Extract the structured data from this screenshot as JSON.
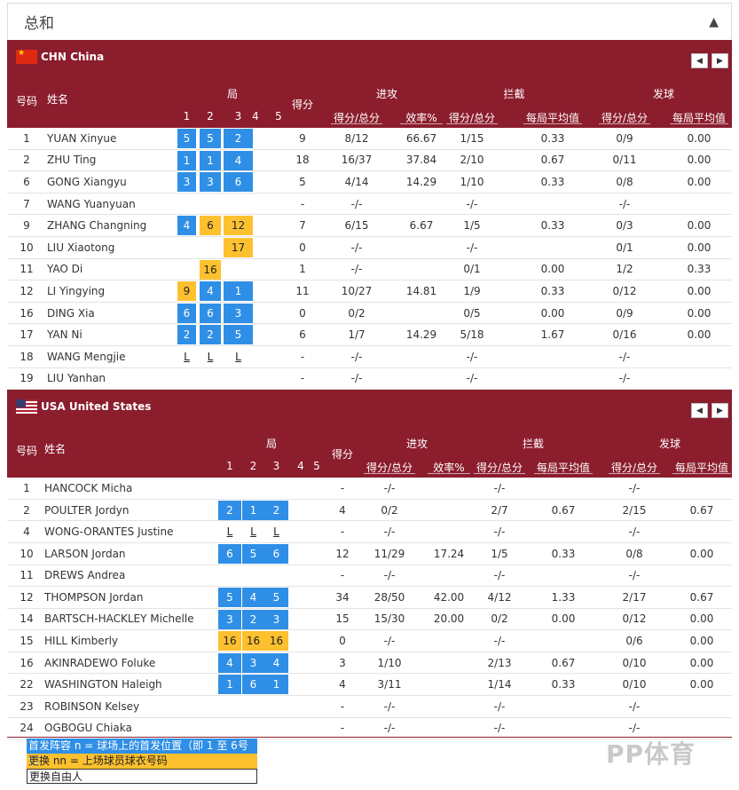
{
  "title": "总和",
  "header_labels": {
    "num": "号码",
    "name": "姓名",
    "sets": "局",
    "set_numbers": [
      "1",
      "2",
      "3",
      "4",
      "5"
    ],
    "points": "得分",
    "attack": "进攻",
    "block": "拦截",
    "serve": "发球",
    "att_sub1": "得分/总分",
    "att_sub2": "效率%",
    "blk_sub1": "得分/总分",
    "blk_sub2": "每局平均值",
    "srv_sub1": "得分/总分",
    "srv_sub2": "每局平均值"
  },
  "teams": [
    {
      "name": "CHN China",
      "players": [
        {
          "no": "1",
          "name": "YUAN Xinyue",
          "sets": [
            [
              "5",
              "blue"
            ],
            [
              "5",
              "blue"
            ],
            [
              "2",
              "blue"
            ],
            [
              "",
              ""
            ],
            [
              "",
              ""
            ]
          ],
          "pts": "9",
          "att": "8/12",
          "eff": "66.67",
          "blk": "1/15",
          "blkavg": "0.33",
          "srv": "0/9",
          "srvavg": "0.00"
        },
        {
          "no": "2",
          "name": "ZHU Ting",
          "sets": [
            [
              "1",
              "blue"
            ],
            [
              "1",
              "blue"
            ],
            [
              "4",
              "blue"
            ],
            [
              "",
              ""
            ],
            [
              "",
              ""
            ]
          ],
          "pts": "18",
          "att": "16/37",
          "eff": "37.84",
          "blk": "2/10",
          "blkavg": "0.67",
          "srv": "0/11",
          "srvavg": "0.00"
        },
        {
          "no": "6",
          "name": "GONG Xiangyu",
          "sets": [
            [
              "3",
              "blue"
            ],
            [
              "3",
              "blue"
            ],
            [
              "6",
              "blue"
            ],
            [
              "",
              ""
            ],
            [
              "",
              ""
            ]
          ],
          "pts": "5",
          "att": "4/14",
          "eff": "14.29",
          "blk": "1/10",
          "blkavg": "0.33",
          "srv": "0/8",
          "srvavg": "0.00"
        },
        {
          "no": "7",
          "name": "WANG Yuanyuan",
          "sets": [
            [
              "",
              ""
            ],
            [
              "",
              ""
            ],
            [
              "",
              ""
            ],
            [
              "",
              ""
            ],
            [
              "",
              ""
            ]
          ],
          "pts": "-",
          "att": "-/-",
          "eff": "",
          "blk": "-/-",
          "blkavg": "",
          "srv": "-/-",
          "srvavg": ""
        },
        {
          "no": "9",
          "name": "ZHANG Changning",
          "sets": [
            [
              "4",
              "blue"
            ],
            [
              "6",
              "gold"
            ],
            [
              "12",
              "gold"
            ],
            [
              "",
              ""
            ],
            [
              "",
              ""
            ]
          ],
          "pts": "7",
          "att": "6/15",
          "eff": "6.67",
          "blk": "1/5",
          "blkavg": "0.33",
          "srv": "0/3",
          "srvavg": "0.00"
        },
        {
          "no": "10",
          "name": "LIU Xiaotong",
          "sets": [
            [
              "",
              ""
            ],
            [
              "",
              ""
            ],
            [
              "17",
              "gold"
            ],
            [
              "",
              ""
            ],
            [
              "",
              ""
            ]
          ],
          "pts": "0",
          "att": "-/-",
          "eff": "",
          "blk": "-/-",
          "blkavg": "",
          "srv": "0/1",
          "srvavg": "0.00"
        },
        {
          "no": "11",
          "name": "YAO Di",
          "sets": [
            [
              "",
              ""
            ],
            [
              "16",
              "gold"
            ],
            [
              "",
              ""
            ],
            [
              "",
              ""
            ],
            [
              "",
              ""
            ]
          ],
          "pts": "1",
          "att": "-/-",
          "eff": "",
          "blk": "0/1",
          "blkavg": "0.00",
          "srv": "1/2",
          "srvavg": "0.33"
        },
        {
          "no": "12",
          "name": "LI Yingying",
          "sets": [
            [
              "9",
              "gold"
            ],
            [
              "4",
              "blue"
            ],
            [
              "1",
              "blue"
            ],
            [
              "",
              ""
            ],
            [
              "",
              ""
            ]
          ],
          "pts": "11",
          "att": "10/27",
          "eff": "14.81",
          "blk": "1/9",
          "blkavg": "0.33",
          "srv": "0/12",
          "srvavg": "0.00"
        },
        {
          "no": "16",
          "name": "DING Xia",
          "sets": [
            [
              "6",
              "blue"
            ],
            [
              "6",
              "blue"
            ],
            [
              "3",
              "blue"
            ],
            [
              "",
              ""
            ],
            [
              "",
              ""
            ]
          ],
          "pts": "0",
          "att": "0/2",
          "eff": "",
          "blk": "0/5",
          "blkavg": "0.00",
          "srv": "0/9",
          "srvavg": "0.00"
        },
        {
          "no": "17",
          "name": "YAN Ni",
          "sets": [
            [
              "2",
              "blue"
            ],
            [
              "2",
              "blue"
            ],
            [
              "5",
              "blue"
            ],
            [
              "",
              ""
            ],
            [
              "",
              ""
            ]
          ],
          "pts": "6",
          "att": "1/7",
          "eff": "14.29",
          "blk": "5/18",
          "blkavg": "1.67",
          "srv": "0/16",
          "srvavg": "0.00"
        },
        {
          "no": "18",
          "name": "WANG Mengjie",
          "sets": [
            [
              "L",
              "lib"
            ],
            [
              "L",
              "lib"
            ],
            [
              "L",
              "lib"
            ],
            [
              "",
              ""
            ],
            [
              "",
              ""
            ]
          ],
          "pts": "-",
          "att": "-/-",
          "eff": "",
          "blk": "-/-",
          "blkavg": "",
          "srv": "-/-",
          "srvavg": ""
        },
        {
          "no": "19",
          "name": "LIU Yanhan",
          "sets": [
            [
              "",
              ""
            ],
            [
              "",
              ""
            ],
            [
              "",
              ""
            ],
            [
              "",
              ""
            ],
            [
              "",
              ""
            ]
          ],
          "pts": "-",
          "att": "-/-",
          "eff": "",
          "blk": "-/-",
          "blkavg": "",
          "srv": "-/-",
          "srvavg": ""
        }
      ]
    },
    {
      "name": "USA United States",
      "players": [
        {
          "no": "1",
          "name": "HANCOCK Micha",
          "sets": [
            [
              "",
              ""
            ],
            [
              "",
              ""
            ],
            [
              "",
              ""
            ],
            [
              "",
              ""
            ],
            [
              "",
              ""
            ]
          ],
          "pts": "-",
          "att": "-/-",
          "eff": "",
          "blk": "-/-",
          "blkavg": "",
          "srv": "-/-",
          "srvavg": ""
        },
        {
          "no": "2",
          "name": "POULTER Jordyn",
          "sets": [
            [
              "2",
              "blue"
            ],
            [
              "1",
              "blue"
            ],
            [
              "2",
              "blue"
            ],
            [
              "",
              ""
            ],
            [
              "",
              ""
            ]
          ],
          "pts": "4",
          "att": "0/2",
          "eff": "",
          "blk": "2/7",
          "blkavg": "0.67",
          "srv": "2/15",
          "srvavg": "0.67"
        },
        {
          "no": "4",
          "name": "WONG-ORANTES Justine",
          "sets": [
            [
              "L",
              "lib"
            ],
            [
              "L",
              "lib"
            ],
            [
              "L",
              "lib"
            ],
            [
              "",
              ""
            ],
            [
              "",
              ""
            ]
          ],
          "pts": "-",
          "att": "-/-",
          "eff": "",
          "blk": "-/-",
          "blkavg": "",
          "srv": "-/-",
          "srvavg": ""
        },
        {
          "no": "10",
          "name": "LARSON Jordan",
          "sets": [
            [
              "6",
              "blue"
            ],
            [
              "5",
              "blue"
            ],
            [
              "6",
              "blue"
            ],
            [
              "",
              ""
            ],
            [
              "",
              ""
            ]
          ],
          "pts": "12",
          "att": "11/29",
          "eff": "17.24",
          "blk": "1/5",
          "blkavg": "0.33",
          "srv": "0/8",
          "srvavg": "0.00"
        },
        {
          "no": "11",
          "name": "DREWS Andrea",
          "sets": [
            [
              "",
              ""
            ],
            [
              "",
              ""
            ],
            [
              "",
              ""
            ],
            [
              "",
              ""
            ],
            [
              "",
              ""
            ]
          ],
          "pts": "-",
          "att": "-/-",
          "eff": "",
          "blk": "-/-",
          "blkavg": "",
          "srv": "-/-",
          "srvavg": ""
        },
        {
          "no": "12",
          "name": "THOMPSON Jordan",
          "sets": [
            [
              "5",
              "blue"
            ],
            [
              "4",
              "blue"
            ],
            [
              "5",
              "blue"
            ],
            [
              "",
              ""
            ],
            [
              "",
              ""
            ]
          ],
          "pts": "34",
          "att": "28/50",
          "eff": "42.00",
          "blk": "4/12",
          "blkavg": "1.33",
          "srv": "2/17",
          "srvavg": "0.67"
        },
        {
          "no": "14",
          "name": "BARTSCH-HACKLEY Michelle",
          "sets": [
            [
              "3",
              "blue"
            ],
            [
              "2",
              "blue"
            ],
            [
              "3",
              "blue"
            ],
            [
              "",
              ""
            ],
            [
              "",
              ""
            ]
          ],
          "pts": "15",
          "att": "15/30",
          "eff": "20.00",
          "blk": "0/2",
          "blkavg": "0.00",
          "srv": "0/12",
          "srvavg": "0.00"
        },
        {
          "no": "15",
          "name": "HILL Kimberly",
          "sets": [
            [
              "16",
              "gold"
            ],
            [
              "16",
              "gold"
            ],
            [
              "16",
              "gold"
            ],
            [
              "",
              ""
            ],
            [
              "",
              ""
            ]
          ],
          "pts": "0",
          "att": "-/-",
          "eff": "",
          "blk": "-/-",
          "blkavg": "",
          "srv": "0/6",
          "srvavg": "0.00"
        },
        {
          "no": "16",
          "name": "AKINRADEWO Foluke",
          "sets": [
            [
              "4",
              "blue"
            ],
            [
              "3",
              "blue"
            ],
            [
              "4",
              "blue"
            ],
            [
              "",
              ""
            ],
            [
              "",
              ""
            ]
          ],
          "pts": "3",
          "att": "1/10",
          "eff": "",
          "blk": "2/13",
          "blkavg": "0.67",
          "srv": "0/10",
          "srvavg": "0.00"
        },
        {
          "no": "22",
          "name": "WASHINGTON Haleigh",
          "sets": [
            [
              "1",
              "blue"
            ],
            [
              "6",
              "blue"
            ],
            [
              "1",
              "blue"
            ],
            [
              "",
              ""
            ],
            [
              "",
              ""
            ]
          ],
          "pts": "4",
          "att": "3/11",
          "eff": "",
          "blk": "1/14",
          "blkavg": "0.33",
          "srv": "0/10",
          "srvavg": "0.00"
        },
        {
          "no": "23",
          "name": "ROBINSON Kelsey",
          "sets": [
            [
              "",
              ""
            ],
            [
              "",
              ""
            ],
            [
              "",
              ""
            ],
            [
              "",
              ""
            ],
            [
              "",
              ""
            ]
          ],
          "pts": "-",
          "att": "-/-",
          "eff": "",
          "blk": "-/-",
          "blkavg": "",
          "srv": "-/-",
          "srvavg": ""
        },
        {
          "no": "24",
          "name": "OGBOGU Chiaka",
          "sets": [
            [
              "",
              ""
            ],
            [
              "",
              ""
            ],
            [
              "",
              ""
            ],
            [
              "",
              ""
            ],
            [
              "",
              ""
            ]
          ],
          "pts": "-",
          "att": "-/-",
          "eff": "",
          "blk": "-/-",
          "blkavg": "",
          "srv": "-/-",
          "srvavg": ""
        }
      ]
    }
  ],
  "legend": {
    "starting": "首发阵容 n = 球场上的首发位置（即 1 至 6号位）",
    "sub": "更换 nn = 上场球员球衣号码",
    "libero": "更换自由人"
  },
  "colors": {
    "header_bg": "#8b1d2d",
    "blue": "#2f8fe6",
    "gold": "#fdc02f"
  },
  "watermark": "PP体育"
}
